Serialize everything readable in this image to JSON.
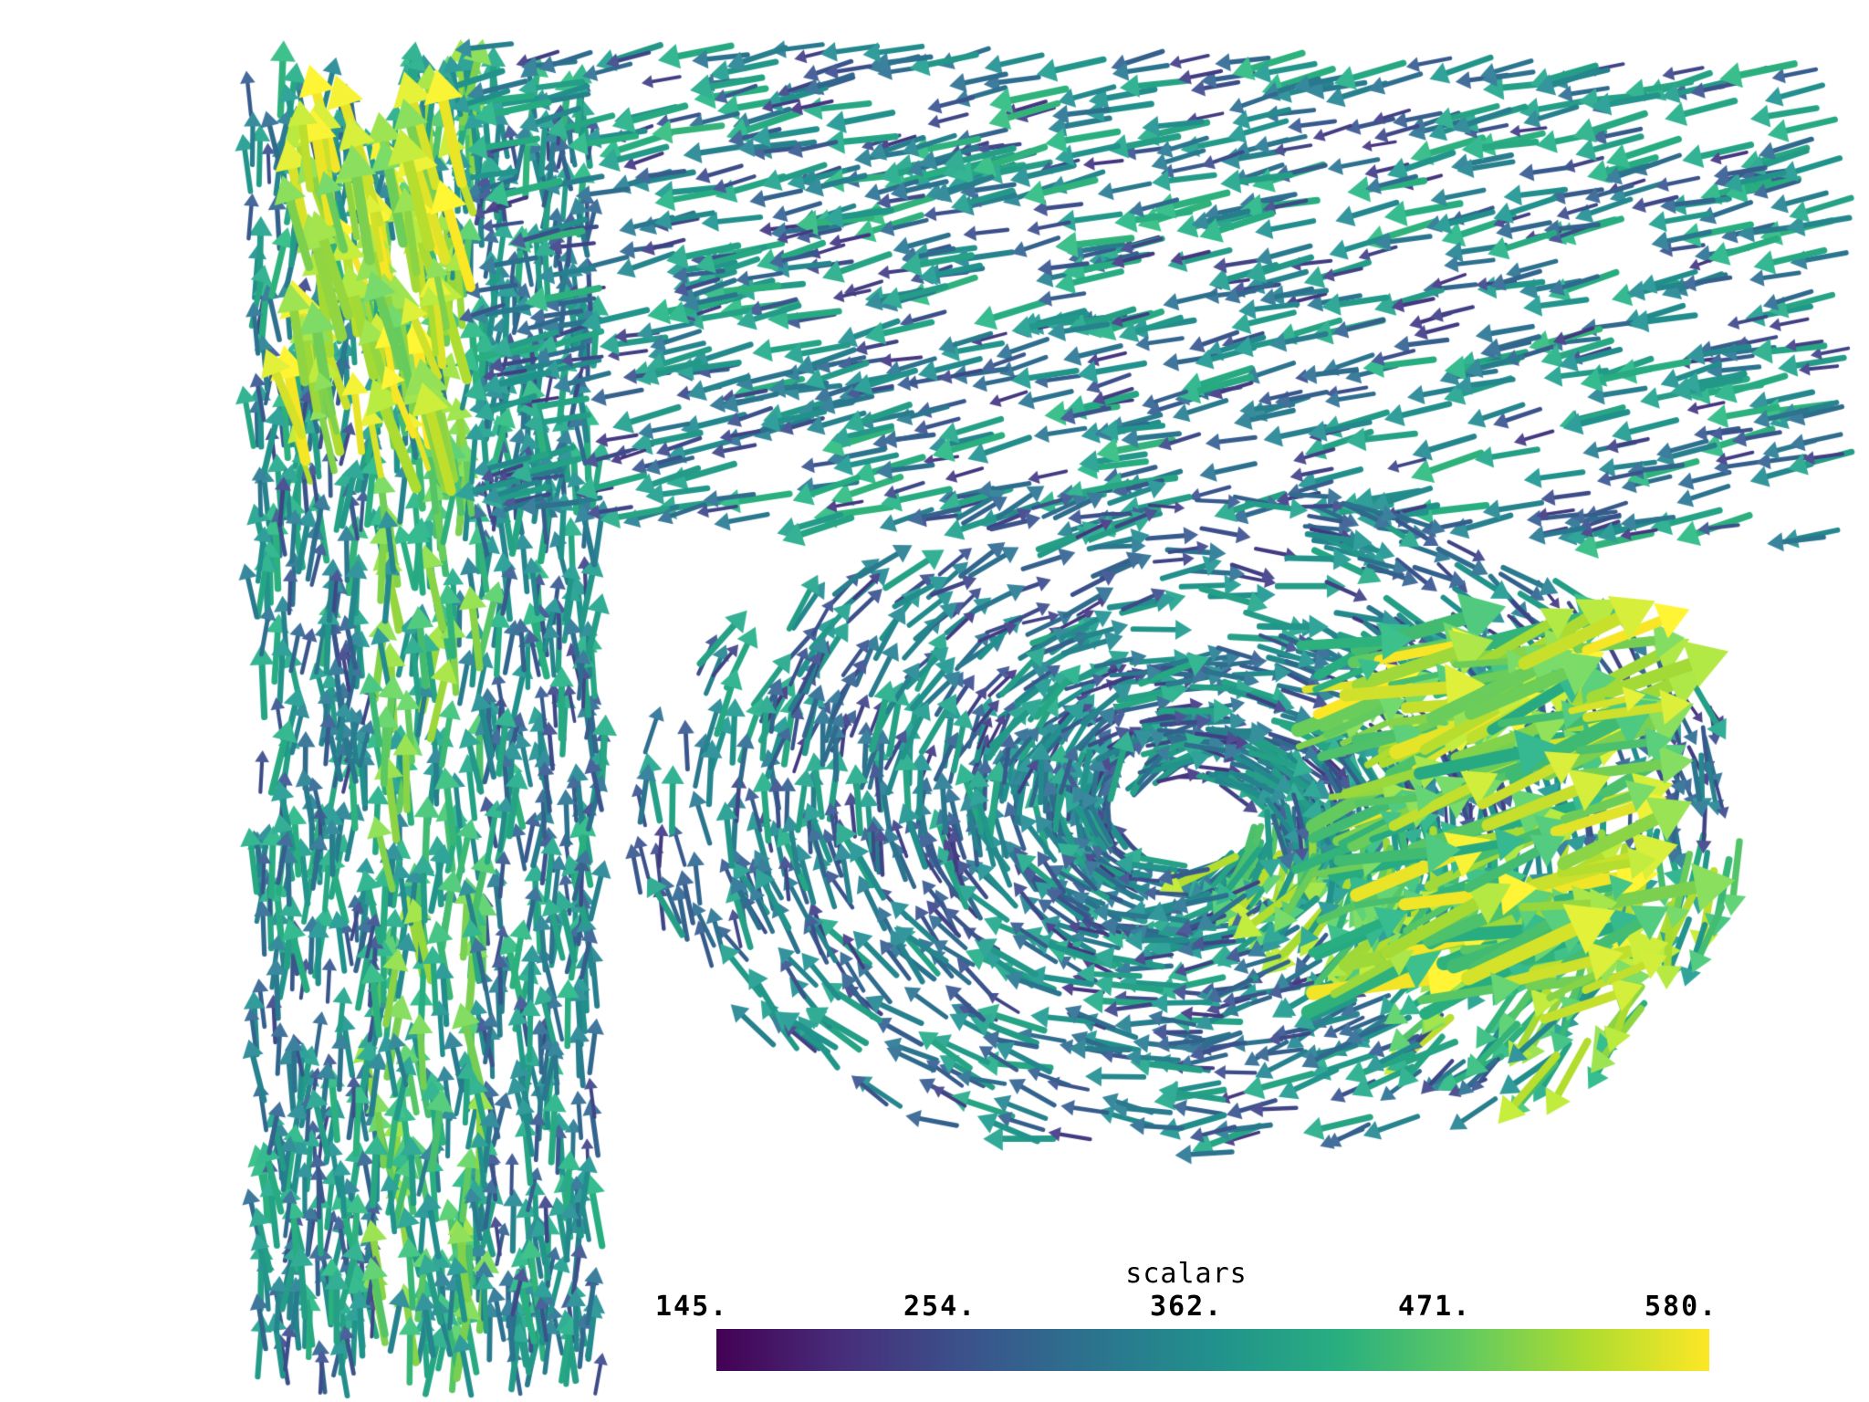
{
  "scene": {
    "background": "#ffffff",
    "glyph_type": "arrow",
    "colormap": "viridis",
    "colormap_stops": [
      "#440154",
      "#472d7b",
      "#3b528b",
      "#2c728e",
      "#21918c",
      "#28ae80",
      "#5ec962",
      "#addc30",
      "#fde725"
    ]
  },
  "scalar_bar": {
    "title": "scalars",
    "ticks": [
      "145.",
      "254.",
      "362.",
      "471.",
      "580."
    ],
    "range": [
      145,
      580
    ]
  }
}
